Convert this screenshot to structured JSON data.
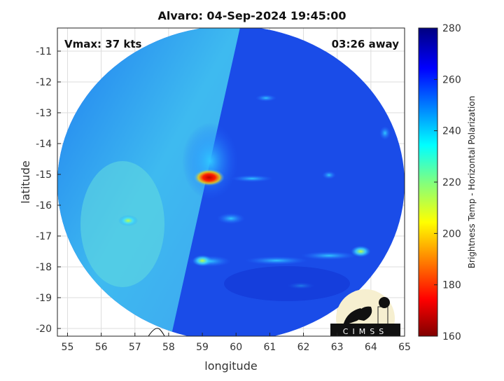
{
  "chart_data": {
    "type": "heatmap",
    "title": "Alvaro: 04-Sep-2024 19:45:00",
    "xlabel": "longitude",
    "ylabel": "latitude",
    "xlim": [
      54.7,
      65
    ],
    "ylim": [
      -20.25,
      -10.25
    ],
    "xticks": [
      55,
      56,
      57,
      58,
      59,
      60,
      61,
      62,
      63,
      64,
      65
    ],
    "yticks": [
      -11,
      -12,
      -13,
      -14,
      -15,
      -16,
      -17,
      -18,
      -19,
      -20
    ],
    "grid": true,
    "colorbar": {
      "label": "Brightness Temp - Horizontal Polarization",
      "clim": [
        160,
        280
      ],
      "ticks": [
        160,
        180,
        200,
        220,
        240,
        260,
        280
      ],
      "colormap": "jet"
    },
    "annotations": {
      "top_left": "Vmax: 37 kts",
      "top_right": "03:26 away"
    },
    "features": [
      {
        "lon": 59.2,
        "lat": -15.1,
        "value": 175
      },
      {
        "lon": 59.0,
        "lat": -17.8,
        "value": 225
      },
      {
        "lon": 63.7,
        "lat": -17.5,
        "value": 205
      },
      {
        "lon": 56.8,
        "lat": -16.5,
        "value": 228
      }
    ],
    "background_value": 258
  },
  "logo": {
    "text": "CIMSS"
  }
}
